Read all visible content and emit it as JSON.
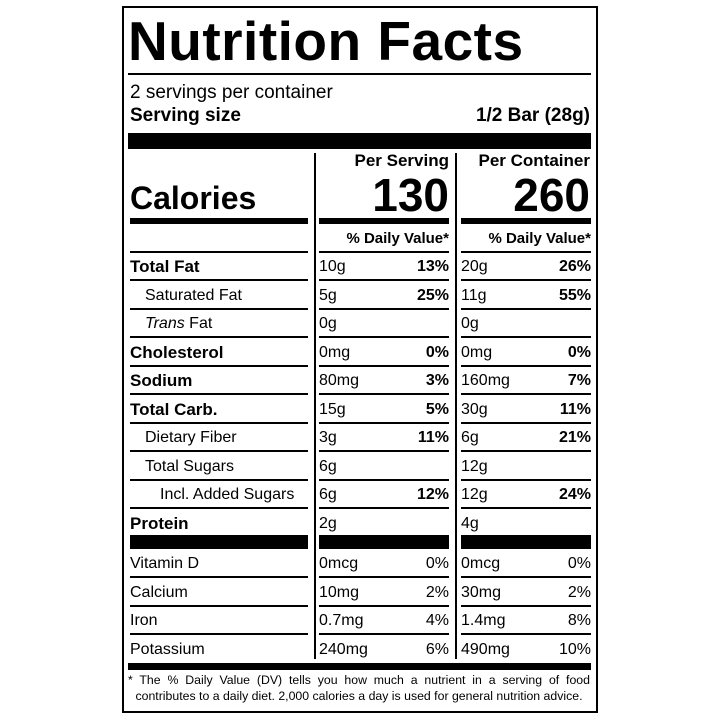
{
  "title": "Nutrition Facts",
  "servings_per_container": "2 servings per container",
  "serving_size_label": "Serving size",
  "serving_size_value": "1/2 Bar (28g)",
  "calories_label": "Calories",
  "per_serving_label": "Per Serving",
  "per_container_label": "Per Container",
  "calories_per_serving": "130",
  "calories_per_container": "260",
  "daily_value_header": "% Daily Value*",
  "nutrients": [
    {
      "label": "Total Fat",
      "style": "bold",
      "ps_amount": "10g",
      "ps_dv": "13%",
      "pc_amount": "20g",
      "pc_dv": "26%",
      "dv_bold": true
    },
    {
      "label": "Saturated Fat",
      "style": "indent",
      "ps_amount": "5g",
      "ps_dv": "25%",
      "pc_amount": "11g",
      "pc_dv": "55%",
      "dv_bold": true
    },
    {
      "label_italic": "Trans",
      "label": " Fat",
      "style": "indent",
      "ps_amount": "0g",
      "ps_dv": "",
      "pc_amount": "0g",
      "pc_dv": "",
      "dv_bold": true
    },
    {
      "label": "Cholesterol",
      "style": "bold",
      "ps_amount": "0mg",
      "ps_dv": "0%",
      "pc_amount": "0mg",
      "pc_dv": "0%",
      "dv_bold": true
    },
    {
      "label": "Sodium",
      "style": "bold",
      "ps_amount": "80mg",
      "ps_dv": "3%",
      "pc_amount": "160mg",
      "pc_dv": "7%",
      "dv_bold": true
    },
    {
      "label": "Total Carb.",
      "style": "bold",
      "ps_amount": "15g",
      "ps_dv": "5%",
      "pc_amount": "30g",
      "pc_dv": "11%",
      "dv_bold": true
    },
    {
      "label": "Dietary Fiber",
      "style": "indent",
      "ps_amount": "3g",
      "ps_dv": "11%",
      "pc_amount": "6g",
      "pc_dv": "21%",
      "dv_bold": true
    },
    {
      "label": "Total Sugars",
      "style": "indent",
      "ps_amount": "6g",
      "ps_dv": "",
      "pc_amount": "12g",
      "pc_dv": "",
      "dv_bold": true
    },
    {
      "label": "Incl. Added Sugars",
      "style": "indent2",
      "ps_amount": "6g",
      "ps_dv": "12%",
      "pc_amount": "12g",
      "pc_dv": "24%",
      "dv_bold": true
    },
    {
      "label": "Protein",
      "style": "bold",
      "ps_amount": "2g",
      "ps_dv": "",
      "pc_amount": "4g",
      "pc_dv": "",
      "dv_bold": true
    },
    {
      "label": "Vitamin D",
      "style": "normal",
      "ps_amount": "0mcg",
      "ps_dv": "0%",
      "pc_amount": "0mcg",
      "pc_dv": "0%",
      "dv_bold": false
    },
    {
      "label": "Calcium",
      "style": "normal",
      "ps_amount": "10mg",
      "ps_dv": "2%",
      "pc_amount": "30mg",
      "pc_dv": "2%",
      "dv_bold": false
    },
    {
      "label": "Iron",
      "style": "normal",
      "ps_amount": "0.7mg",
      "ps_dv": "4%",
      "pc_amount": "1.4mg",
      "pc_dv": "8%",
      "dv_bold": false
    },
    {
      "label": "Potassium",
      "style": "normal",
      "ps_amount": "240mg",
      "ps_dv": "6%",
      "pc_amount": "490mg",
      "pc_dv": "10%",
      "dv_bold": false
    }
  ],
  "footnote": "* The % Daily Value (DV) tells you how much a nutrient in a serving of food contributes to a daily diet. 2,000 calories a day is used for general nutrition advice."
}
